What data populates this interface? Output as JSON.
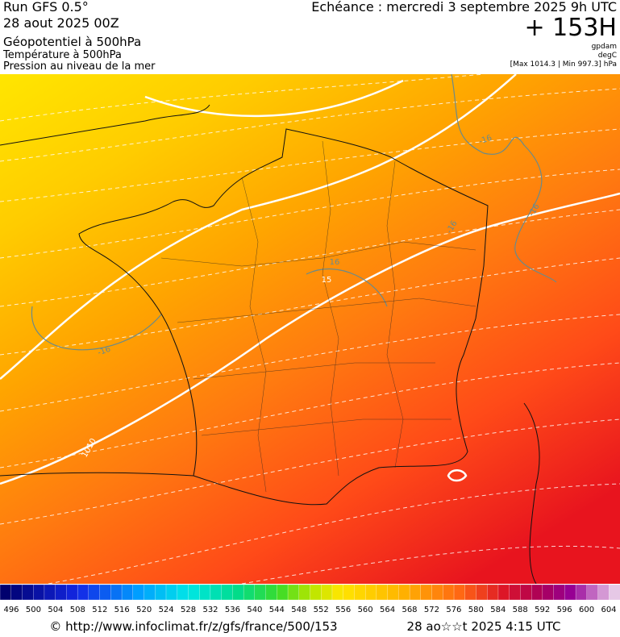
{
  "header": {
    "run": "Run GFS 0.5°",
    "date": "28 aout 2025 00Z",
    "fields": [
      "Géopotentiel à 500hPa",
      "Température à 500hPa",
      "Pression au niveau de la mer"
    ],
    "forecast": "Echéance : mercredi 3 septembre 2025 9h UTC",
    "lead": "+ 153H",
    "units": [
      "gpdam",
      "degC"
    ],
    "range": "[Max 1014.3 | Min 997.3] hPa"
  },
  "map": {
    "contour_labels": [
      "-16",
      "-16",
      "-16",
      "16",
      "15",
      "-16",
      "1010"
    ]
  },
  "colorbar": {
    "labels": [
      496,
      500,
      504,
      508,
      512,
      516,
      520,
      524,
      528,
      532,
      536,
      540,
      544,
      548,
      552,
      556,
      560,
      564,
      568,
      572,
      576,
      580,
      584,
      588,
      592,
      596,
      600,
      604
    ]
  },
  "footer": {
    "url": "© http://www.infoclimat.fr/z/gfs/france/500/153",
    "timestamp": "28 ao☆☆t 2025  4:15 UTC"
  }
}
